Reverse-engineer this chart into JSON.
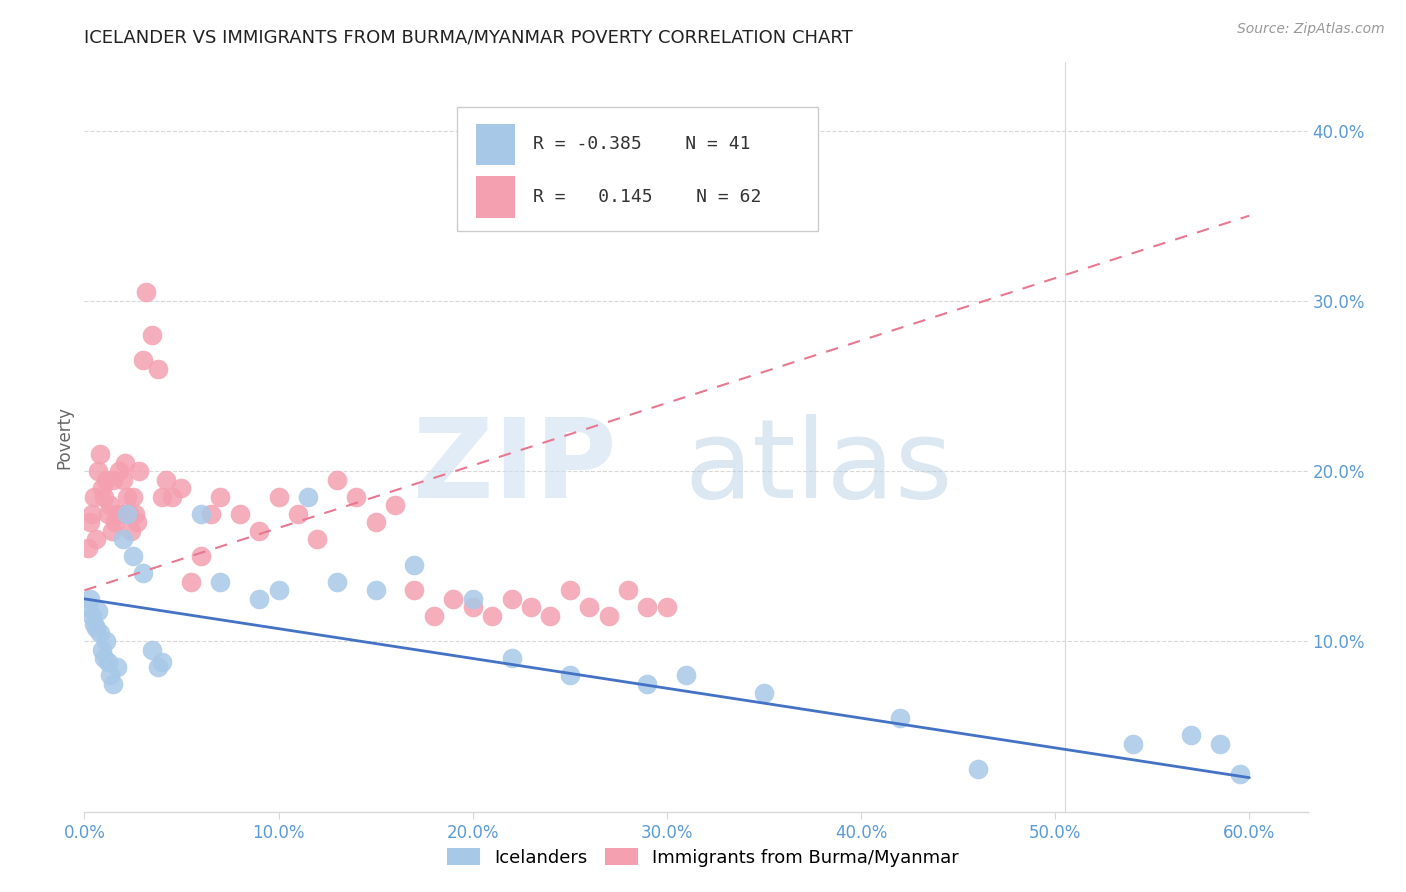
{
  "title": "ICELANDER VS IMMIGRANTS FROM BURMA/MYANMAR POVERTY CORRELATION CHART",
  "source": "Source: ZipAtlas.com",
  "ylabel": "Poverty",
  "xlim": [
    0.0,
    0.63
  ],
  "ylim": [
    0.0,
    0.44
  ],
  "ytick_vals": [
    0.1,
    0.2,
    0.3,
    0.4
  ],
  "ytick_labels": [
    "10.0%",
    "20.0%",
    "30.0%",
    "40.0%"
  ],
  "xtick_vals": [
    0.0,
    0.1,
    0.2,
    0.3,
    0.4,
    0.5,
    0.6
  ],
  "xtick_labels": [
    "0.0%",
    "10.0%",
    "20.0%",
    "30.0%",
    "40.0%",
    "50.0%",
    "60.0%"
  ],
  "legend_R_blue": "-0.385",
  "legend_N_blue": "41",
  "legend_R_pink": "0.145",
  "legend_N_pink": "62",
  "blue_scatter_color": "#a8c8e8",
  "pink_scatter_color": "#f4a0b0",
  "blue_line_color": "#4472c4",
  "pink_line_color": "#e87890",
  "tick_color": "#5b9bd5",
  "ylabel_color": "#666666",
  "grid_color": "#d8d8d8",
  "title_color": "#222222",
  "source_color": "#999999",
  "blue_x": [
    0.002,
    0.003,
    0.004,
    0.005,
    0.006,
    0.007,
    0.008,
    0.009,
    0.01,
    0.011,
    0.012,
    0.013,
    0.015,
    0.017,
    0.02,
    0.022,
    0.025,
    0.03,
    0.035,
    0.038,
    0.04,
    0.06,
    0.07,
    0.09,
    0.1,
    0.115,
    0.13,
    0.15,
    0.17,
    0.2,
    0.22,
    0.25,
    0.29,
    0.31,
    0.35,
    0.42,
    0.46,
    0.54,
    0.57,
    0.585,
    0.595
  ],
  "blue_y": [
    0.12,
    0.125,
    0.115,
    0.11,
    0.108,
    0.118,
    0.105,
    0.095,
    0.09,
    0.1,
    0.088,
    0.08,
    0.075,
    0.085,
    0.16,
    0.175,
    0.15,
    0.14,
    0.095,
    0.085,
    0.088,
    0.175,
    0.135,
    0.125,
    0.13,
    0.185,
    0.135,
    0.13,
    0.145,
    0.125,
    0.09,
    0.08,
    0.075,
    0.08,
    0.07,
    0.055,
    0.025,
    0.04,
    0.045,
    0.04,
    0.022
  ],
  "pink_x": [
    0.002,
    0.003,
    0.004,
    0.005,
    0.006,
    0.007,
    0.008,
    0.009,
    0.01,
    0.011,
    0.012,
    0.013,
    0.014,
    0.015,
    0.016,
    0.017,
    0.018,
    0.019,
    0.02,
    0.021,
    0.022,
    0.023,
    0.024,
    0.025,
    0.026,
    0.027,
    0.028,
    0.03,
    0.032,
    0.035,
    0.038,
    0.04,
    0.042,
    0.045,
    0.05,
    0.055,
    0.06,
    0.065,
    0.07,
    0.08,
    0.09,
    0.1,
    0.11,
    0.12,
    0.13,
    0.14,
    0.15,
    0.16,
    0.17,
    0.18,
    0.19,
    0.2,
    0.21,
    0.22,
    0.23,
    0.24,
    0.25,
    0.26,
    0.27,
    0.28,
    0.29,
    0.3
  ],
  "pink_y": [
    0.155,
    0.17,
    0.175,
    0.185,
    0.16,
    0.2,
    0.21,
    0.19,
    0.185,
    0.195,
    0.175,
    0.18,
    0.165,
    0.195,
    0.17,
    0.175,
    0.2,
    0.175,
    0.195,
    0.205,
    0.185,
    0.175,
    0.165,
    0.185,
    0.175,
    0.17,
    0.2,
    0.265,
    0.305,
    0.28,
    0.26,
    0.185,
    0.195,
    0.185,
    0.19,
    0.135,
    0.15,
    0.175,
    0.185,
    0.175,
    0.165,
    0.185,
    0.175,
    0.16,
    0.195,
    0.185,
    0.17,
    0.18,
    0.13,
    0.115,
    0.125,
    0.12,
    0.115,
    0.125,
    0.12,
    0.115,
    0.13,
    0.12,
    0.115,
    0.13,
    0.12,
    0.12
  ]
}
